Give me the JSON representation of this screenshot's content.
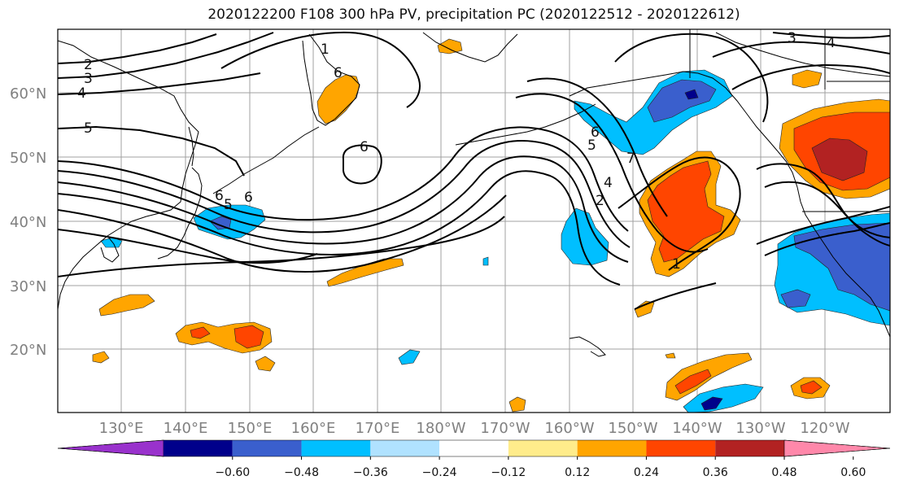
{
  "title": "2020122200 F108 300 hPa PV, precipitation PC (2020122512 - 2020122612)",
  "lat_labels": [
    "60°N",
    "50°N",
    "40°N",
    "30°N",
    "20°N"
  ],
  "lon_labels": [
    "130°E",
    "140°E",
    "150°E",
    "160°E",
    "170°E",
    "180°W",
    "170°W",
    "160°W",
    "150°W",
    "140°W",
    "130°W",
    "120°W"
  ],
  "colorbar": {
    "ticks": [
      "−0.60",
      "−0.48",
      "−0.36",
      "−0.24",
      "−0.12",
      "0.12",
      "0.24",
      "0.36",
      "0.48",
      "0.60"
    ],
    "colors": [
      "#9932cc",
      "#00008b",
      "#3a5fcd",
      "#00bfff",
      "#b0e2ff",
      "#ffffff",
      "#ffec8b",
      "#ffa500",
      "#ff4500",
      "#b22222",
      "#ff88aa"
    ]
  },
  "contour_labels": [
    "2",
    "3",
    "4",
    "5",
    "1",
    "6",
    "6",
    "6",
    "5",
    "6",
    "6",
    "7",
    "5",
    "4",
    "2",
    "1",
    "3",
    "4"
  ]
}
